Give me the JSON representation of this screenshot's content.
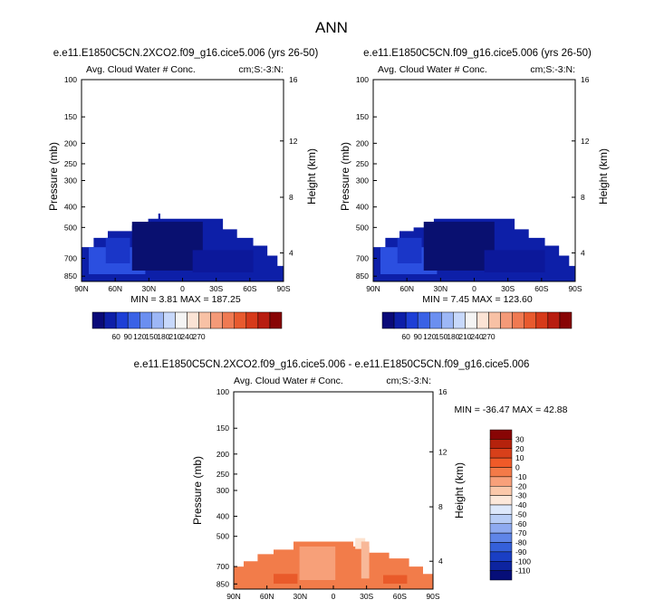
{
  "main_title": "ANN",
  "chart_data": [
    {
      "type": "heatmap",
      "title": "e.e11.E1850C5CN.2XCO2.f09_g16.cice5.006 (yrs 26-50)",
      "left_string": "Avg. Cloud Water # Conc.",
      "right_string": "cm;S:-3:N:",
      "ylabel": "Pressure (mb)",
      "y2label": "Height (km)",
      "x_ticks": [
        "90N",
        "60N",
        "30N",
        "0",
        "30S",
        "60S",
        "90S"
      ],
      "y_ticks": [
        "100",
        "150",
        "200",
        "250",
        "300",
        "400",
        "500",
        "700",
        "850"
      ],
      "y2_ticks": [
        "16",
        "12",
        "8",
        "4"
      ],
      "min_max_text": "MIN =  3.81   MAX = 187.25",
      "colorbar_labels": [
        "60",
        "90",
        "120",
        "150",
        "180",
        "210",
        "240",
        "270"
      ],
      "colors": [
        "#0a0a78",
        "#0d1fa8",
        "#1d3fd6",
        "#3a62e6",
        "#6b8ff0",
        "#9db7f6",
        "#c7d8fb",
        "#f4f4f4",
        "#fbe3d5",
        "#f8c1a5",
        "#f49a78",
        "#ef7a52",
        "#e85a2e",
        "#d63a1a",
        "#b81d10",
        "#880505"
      ]
    },
    {
      "type": "heatmap",
      "title": "e.e11.E1850C5CN.f09_g16.cice5.006 (yrs 26-50)",
      "left_string": "Avg. Cloud Water # Conc.",
      "right_string": "cm;S:-3:N:",
      "ylabel": "Pressure (mb)",
      "y2label": "Height (km)",
      "x_ticks": [
        "90N",
        "60N",
        "30N",
        "0",
        "30S",
        "60S",
        "90S"
      ],
      "y_ticks": [
        "100",
        "150",
        "200",
        "250",
        "300",
        "400",
        "500",
        "700",
        "850"
      ],
      "y2_ticks": [
        "16",
        "12",
        "8",
        "4"
      ],
      "min_max_text": "MIN =  7.45   MAX = 123.60",
      "colorbar_labels": [
        "60",
        "90",
        "120",
        "150",
        "180",
        "210",
        "240",
        "270"
      ],
      "colors": [
        "#0a0a78",
        "#0d1fa8",
        "#1d3fd6",
        "#3a62e6",
        "#6b8ff0",
        "#9db7f6",
        "#c7d8fb",
        "#f4f4f4",
        "#fbe3d5",
        "#f8c1a5",
        "#f49a78",
        "#ef7a52",
        "#e85a2e",
        "#d63a1a",
        "#b81d10",
        "#880505"
      ]
    },
    {
      "type": "heatmap",
      "title": "e.e11.E1850C5CN.2XCO2.f09_g16.cice5.006 - e.e11.E1850C5CN.f09_g16.cice5.006",
      "left_string": "Avg. Cloud Water # Conc.",
      "right_string": "cm;S:-3:N:",
      "ylabel": "Pressure (mb)",
      "y2label": "Height (km)",
      "x_ticks": [
        "90N",
        "60N",
        "30N",
        "0",
        "30S",
        "60S",
        "90S"
      ],
      "y_ticks": [
        "100",
        "150",
        "200",
        "250",
        "300",
        "400",
        "500",
        "700",
        "850"
      ],
      "y2_ticks": [
        "16",
        "12",
        "8",
        "4"
      ],
      "min_max_text": "MIN = -36.47   MAX =  42.88",
      "colorbar_labels": [
        "30",
        "20",
        "10",
        "0",
        "-10",
        "-20",
        "-30",
        "-40",
        "-50",
        "-60",
        "-70",
        "-80",
        "-90",
        "-100",
        "-110"
      ],
      "colors": [
        "#880505",
        "#b5220c",
        "#d8401a",
        "#f05a28",
        "#f47a48",
        "#f8a07a",
        "#fbc8aa",
        "#fde8da",
        "#dde8fb",
        "#b8cdf6",
        "#8eaaf0",
        "#5f85e8",
        "#3560da",
        "#1a3fc4",
        "#0d24a0",
        "#060e78"
      ]
    }
  ]
}
